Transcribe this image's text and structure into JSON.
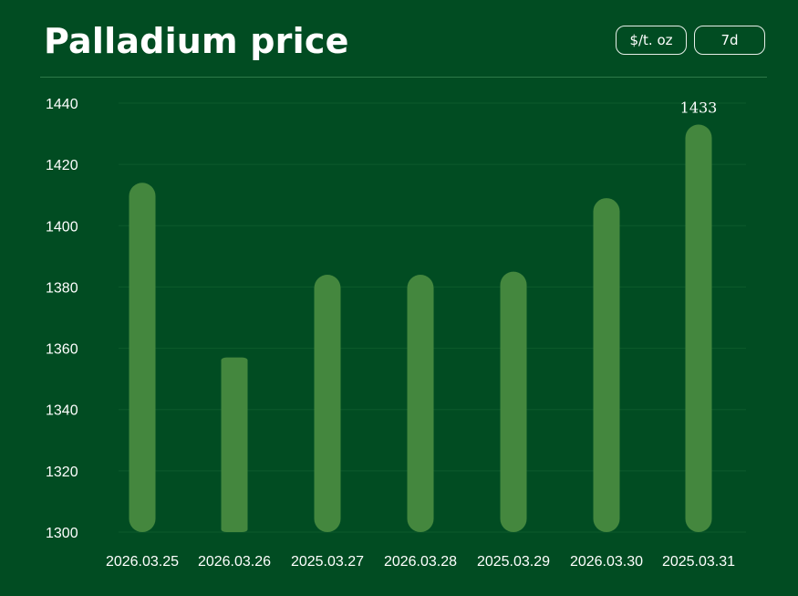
{
  "header": {
    "title": "Palladium price",
    "unit_label": "$/t. oz",
    "range_label": "7d"
  },
  "colors": {
    "background": "#014c22",
    "bar": "#44873e",
    "grid": "#0d5a2c",
    "divider": "#2f7a4a"
  },
  "chart_data": {
    "type": "bar",
    "title": "Palladium price",
    "categories": [
      "2026.03.25",
      "2026.03.26",
      "2025.03.27",
      "2026.03.28",
      "2025.03.29",
      "2026.03.30",
      "2025.03.31"
    ],
    "values": [
      1414,
      1357,
      1384,
      1384,
      1385,
      1409,
      1433
    ],
    "ylim": [
      1300,
      1440
    ],
    "yticks": [
      1300,
      1320,
      1340,
      1360,
      1380,
      1400,
      1420,
      1440
    ],
    "grid": true,
    "data_labels": [
      {
        "index": 6,
        "text": "1433"
      }
    ]
  }
}
